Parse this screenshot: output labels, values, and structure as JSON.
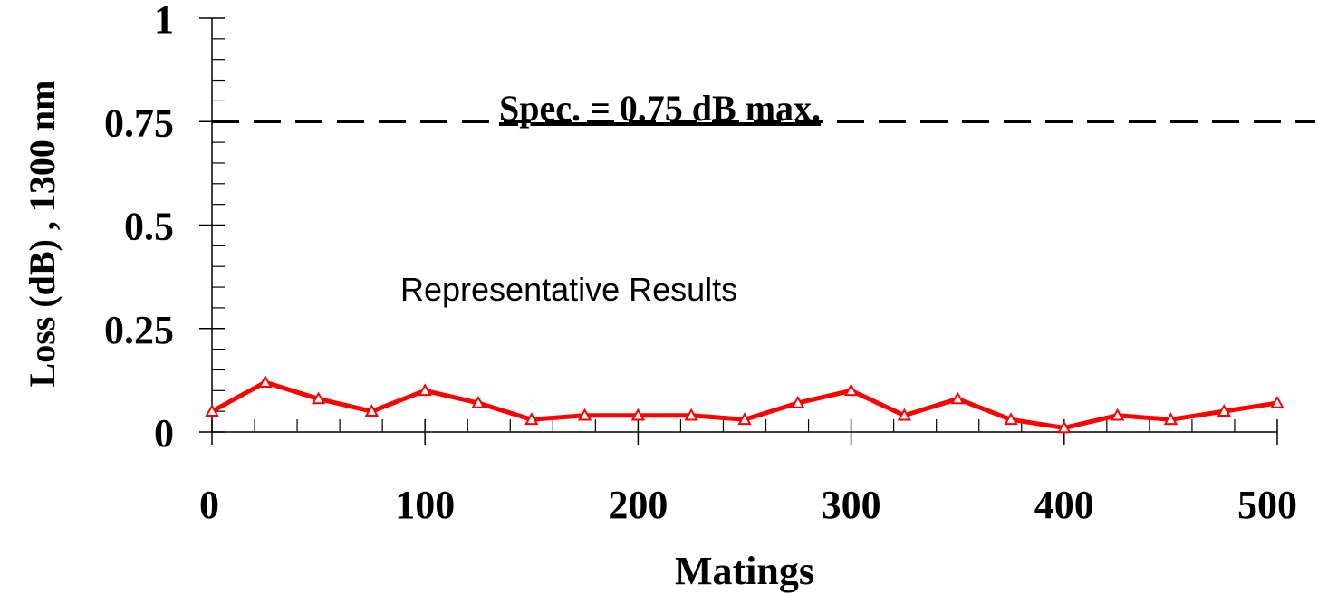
{
  "chart_data": {
    "type": "line",
    "title": "",
    "xlabel": "Matings",
    "ylabel": "Loss (dB) , 1300 nm",
    "xlim": [
      0,
      500
    ],
    "ylim": [
      0,
      1
    ],
    "x_ticks": [
      0,
      100,
      200,
      300,
      400,
      500
    ],
    "x_tick_labels": [
      "0",
      "100",
      "200",
      "300",
      "400",
      "500"
    ],
    "y_ticks": [
      0,
      0.25,
      0.5,
      0.75,
      1
    ],
    "y_tick_labels": [
      "0",
      "0.25",
      "0.5",
      "0.75",
      "1"
    ],
    "grid": false,
    "series": [
      {
        "color": "#ff0000",
        "marker": "triangle-open",
        "x": [
          0,
          25,
          50,
          75,
          100,
          125,
          150,
          175,
          200,
          225,
          250,
          275,
          300,
          325,
          350,
          375,
          400,
          425,
          450,
          475,
          500
        ],
        "values": [
          0.05,
          0.12,
          0.08,
          0.05,
          0.1,
          0.07,
          0.03,
          0.04,
          0.04,
          0.04,
          0.03,
          0.07,
          0.1,
          0.04,
          0.08,
          0.03,
          0.01,
          0.04,
          0.03,
          0.05,
          0.07
        ]
      }
    ],
    "reference_line": {
      "y": 0.75,
      "style": "dashed",
      "color": "#000000",
      "label": "Spec. = 0.75 dB max."
    },
    "annotations": [
      {
        "text": "Representative Results",
        "x": 225,
        "y": 0.35
      }
    ]
  }
}
